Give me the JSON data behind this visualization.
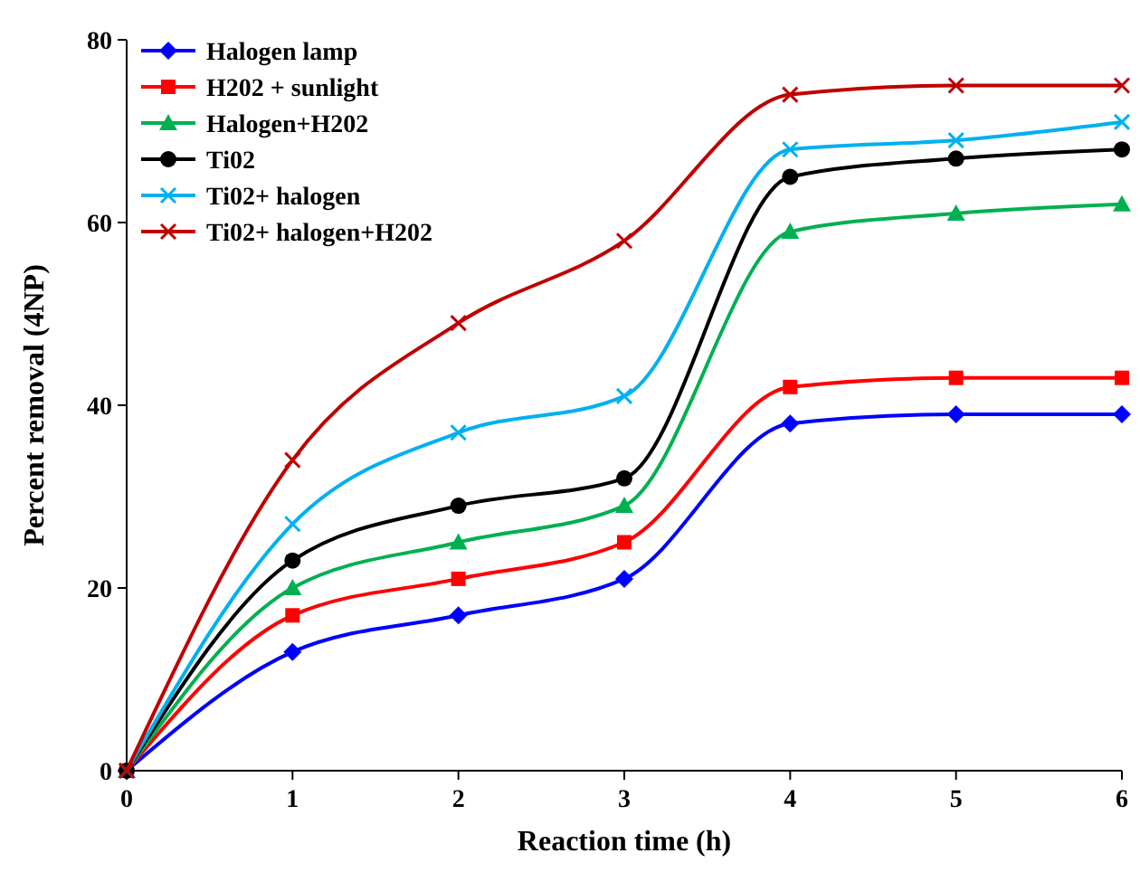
{
  "chart_data": {
    "type": "line",
    "xlabel": "Reaction time (h)",
    "ylabel": "Percent removal (4NP)",
    "x": [
      0,
      1,
      2,
      3,
      4,
      5,
      6
    ],
    "xlim": [
      0,
      6
    ],
    "xticks": [
      0,
      1,
      2,
      3,
      4,
      5,
      6
    ],
    "ylim": [
      0,
      80
    ],
    "yticks": [
      0,
      20,
      40,
      60,
      80
    ],
    "legend": "top left",
    "grid": false,
    "line_style": "solid",
    "series": [
      {
        "name": "Halogen lamp",
        "color": "#0000ff",
        "marker": "diamond",
        "values": [
          0,
          13,
          17,
          21,
          38,
          39,
          39
        ]
      },
      {
        "name": "H202 + sunlight",
        "color": "#ff0000",
        "marker": "square",
        "values": [
          0,
          17,
          21,
          25,
          42,
          43,
          43
        ]
      },
      {
        "name": "Halogen+H202",
        "color": "#00b050",
        "marker": "triangle",
        "values": [
          0,
          20,
          25,
          29,
          59,
          61,
          62
        ]
      },
      {
        "name": "Ti02",
        "color": "#000000",
        "marker": "circle",
        "values": [
          0,
          23,
          29,
          32,
          65,
          67,
          68
        ]
      },
      {
        "name": "Ti02+ halogen",
        "color": "#00b0f0",
        "marker": "cross",
        "values": [
          0,
          27,
          37,
          41,
          68,
          69,
          71
        ]
      },
      {
        "name": "Ti02+ halogen+H202",
        "color": "#c00000",
        "marker": "cross",
        "values": [
          0,
          34,
          49,
          58,
          74,
          75,
          75
        ]
      }
    ]
  }
}
